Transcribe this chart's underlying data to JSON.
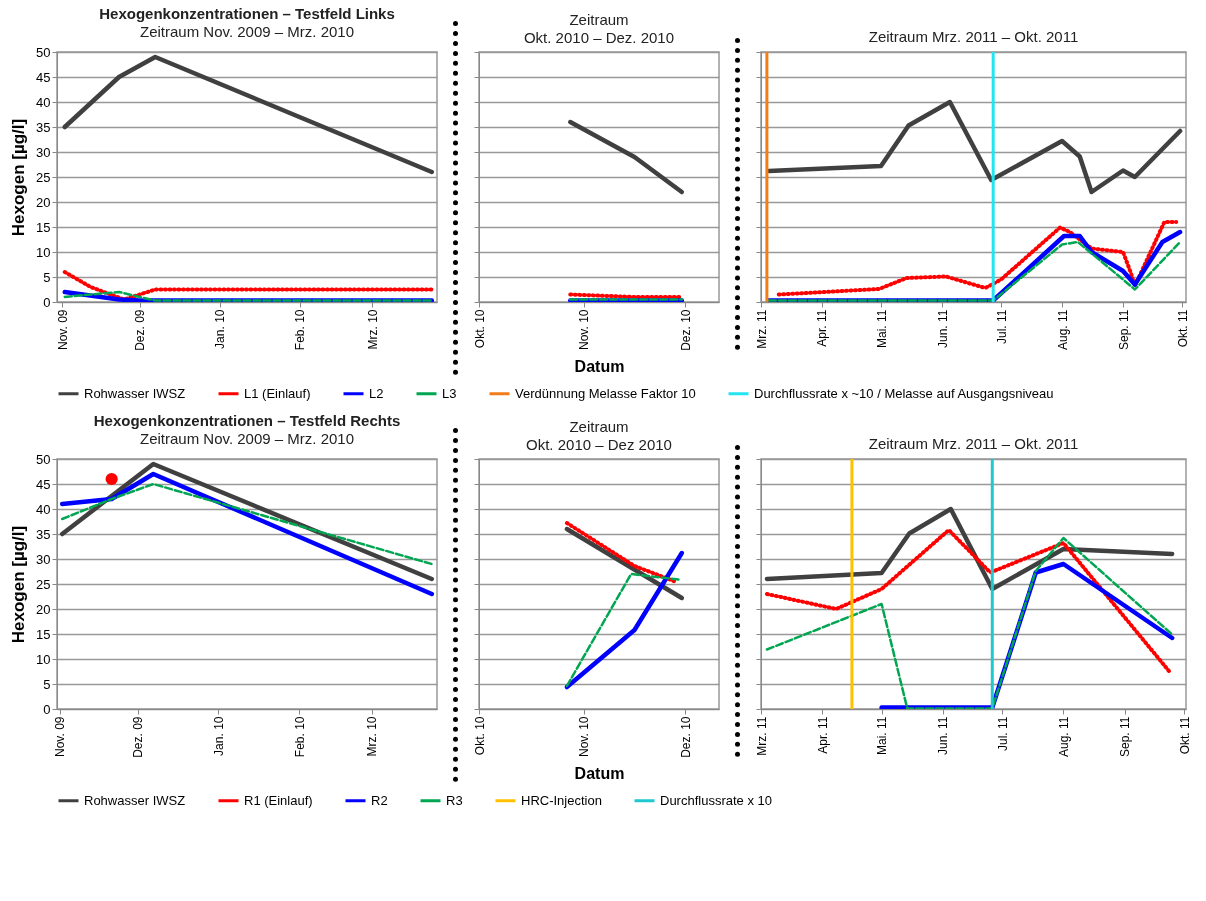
{
  "chart_data": [
    {
      "type": "line",
      "title": "Hexogenkonzentrationen – Testfeld Links",
      "subtitle": "Zeitraum Nov. 2009 – Mrz. 2010",
      "ylabel": "Hexogen [µg/l]",
      "xlim": [
        "2009-10-30",
        "2010-03-26"
      ],
      "xticks": [
        {
          "value": "2009-11-01",
          "label": "Nov. 09"
        },
        {
          "value": "2009-12-01",
          "label": "Dez. 09"
        },
        {
          "value": "2010-01-01",
          "label": "Jan. 10"
        },
        {
          "value": "2010-02-01",
          "label": "Feb. 10"
        },
        {
          "value": "2010-03-01",
          "label": "Mrz. 10"
        }
      ],
      "ylim": [
        0,
        50
      ],
      "yticks": [
        0,
        5,
        10,
        15,
        20,
        25,
        30,
        35,
        40,
        45,
        50
      ],
      "grid": "y",
      "series": [
        {
          "color": "#404040",
          "line_style": "solid",
          "x": [
            "2009-11-02",
            "2009-11-23",
            "2009-12-07",
            "2010-03-24"
          ],
          "values": [
            35,
            45,
            49,
            26
          ]
        },
        {
          "color": "#ff0000",
          "line_style": "dotted",
          "x": [
            "2009-11-02",
            "2009-11-12",
            "2009-11-25",
            "2009-12-01",
            "2009-12-07",
            "2010-03-24"
          ],
          "values": [
            6,
            3,
            0.5,
            1.5,
            2.5,
            2.5
          ]
        },
        {
          "color": "#0000ff",
          "line_style": "solid",
          "x": [
            "2009-11-02",
            "2009-11-23",
            "2009-12-01",
            "2010-03-24"
          ],
          "values": [
            2,
            0.5,
            0.3,
            0.3
          ]
        },
        {
          "color": "#00a651",
          "line_style": "dashed",
          "x": [
            "2009-11-02",
            "2009-11-12",
            "2009-11-23",
            "2009-12-01",
            "2009-12-07",
            "2010-03-24"
          ],
          "values": [
            1,
            1.5,
            2,
            1,
            0.3,
            0.3
          ]
        }
      ]
    },
    {
      "type": "line",
      "title": "Zeitraum",
      "subtitle": "Okt. 2010 – Dez. 2010",
      "xlabel": "Datum",
      "xlim": [
        "2010-10-01",
        "2010-12-11"
      ],
      "xticks": [
        {
          "value": "2010-10-01",
          "label": "Okt. 10"
        },
        {
          "value": "2010-11-01",
          "label": "Nov. 10"
        },
        {
          "value": "2010-12-01",
          "label": "Dez. 10"
        }
      ],
      "ylim": [
        0,
        50
      ],
      "yticks": [
        0,
        5,
        10,
        15,
        20,
        25,
        30,
        35,
        40,
        45,
        50
      ],
      "grid": "y",
      "tick_labels": "x",
      "series": [
        {
          "color": "#404040",
          "line_style": "solid",
          "x": [
            "2010-10-28",
            "2010-11-16",
            "2010-11-30"
          ],
          "values": [
            36,
            29,
            22
          ]
        },
        {
          "color": "#ff0000",
          "line_style": "dotted",
          "x": [
            "2010-10-28",
            "2010-11-16",
            "2010-11-30"
          ],
          "values": [
            1.5,
            1,
            1
          ]
        },
        {
          "color": "#0000ff",
          "line_style": "solid",
          "x": [
            "2010-10-28",
            "2010-11-30"
          ],
          "values": [
            0.3,
            0.3
          ]
        },
        {
          "color": "#00a651",
          "line_style": "dashed",
          "x": [
            "2010-10-28",
            "2010-11-30"
          ],
          "values": [
            0.5,
            0.5
          ]
        }
      ]
    },
    {
      "type": "line",
      "title": "Zeitraum Mrz. 2011 – Okt. 2011",
      "xlim": [
        "2011-03-01",
        "2011-10-03"
      ],
      "xticks": [
        {
          "value": "2011-03-01",
          "label": "Mrz. 11"
        },
        {
          "value": "2011-04-01",
          "label": "Apr. 11"
        },
        {
          "value": "2011-05-01",
          "label": "Mai. 11"
        },
        {
          "value": "2011-06-01",
          "label": "Jun. 11"
        },
        {
          "value": "2011-07-01",
          "label": "Jul. 11"
        },
        {
          "value": "2011-08-01",
          "label": "Aug. 11"
        },
        {
          "value": "2011-09-01",
          "label": "Sep. 11"
        },
        {
          "value": "2011-10-01",
          "label": "Okt. 11"
        }
      ],
      "ylim": [
        0,
        50
      ],
      "yticks": [
        0,
        5,
        10,
        15,
        20,
        25,
        30,
        35,
        40,
        45,
        50
      ],
      "grid": "y",
      "tick_labels": "x",
      "legend": "bottom",
      "ref_lines": [
        {
          "axis": "x",
          "value": "2011-03-04",
          "label": "Verdünnung Melasse Faktor 10",
          "color": "#f07d1a"
        },
        {
          "axis": "x",
          "value": "2011-06-27",
          "label": "Durchflussrate x ~10 / Melasse auf Ausgangsniveau",
          "color": "#22e5f0"
        }
      ],
      "series": [
        {
          "name": "Rohwasser IWSZ",
          "color": "#404040",
          "line_style": "solid",
          "x": [
            "2011-03-05",
            "2011-05-01",
            "2011-05-15",
            "2011-06-05",
            "2011-06-26",
            "2011-08-01",
            "2011-08-10",
            "2011-08-16",
            "2011-09-01",
            "2011-09-07",
            "2011-09-30"
          ],
          "values": [
            26.2,
            27.2,
            35.3,
            40,
            24.4,
            32.2,
            29.1,
            22,
            26.3,
            25,
            34.2
          ]
        },
        {
          "name": "L1 (Einlauf)",
          "color": "#ff0000",
          "line_style": "dotted",
          "x": [
            "2011-03-10",
            "2011-04-30",
            "2011-05-14",
            "2011-06-03",
            "2011-06-23",
            "2011-07-01",
            "2011-07-31",
            "2011-08-05",
            "2011-08-16",
            "2011-09-01",
            "2011-09-05",
            "2011-09-07",
            "2011-09-22",
            "2011-09-28"
          ],
          "values": [
            1.5,
            2.6,
            4.8,
            5.1,
            2.8,
            4.5,
            14.9,
            14,
            10.7,
            10,
            5.8,
            3.2,
            16,
            16
          ]
        },
        {
          "name": "L2",
          "color": "#0000ff",
          "line_style": "solid",
          "x": [
            "2011-03-05",
            "2011-06-27",
            "2011-08-02",
            "2011-08-10",
            "2011-08-16",
            "2011-09-01",
            "2011-09-07",
            "2011-09-21",
            "2011-09-30"
          ],
          "values": [
            0.3,
            0.3,
            13.2,
            13.2,
            10,
            6.2,
            3.5,
            12,
            14
          ]
        },
        {
          "name": "L3",
          "color": "#00a651",
          "line_style": "dashed",
          "x": [
            "2011-03-05",
            "2011-06-27",
            "2011-08-01",
            "2011-08-09",
            "2011-09-01",
            "2011-09-07",
            "2011-09-30"
          ],
          "values": [
            0.3,
            0.3,
            11.5,
            12,
            4.5,
            2.5,
            12
          ]
        }
      ]
    },
    {
      "type": "line",
      "title": "Hexogenkonzentrationen – Testfeld Rechts",
      "subtitle": "Zeitraum Nov. 2009 – Mrz. 2010",
      "ylabel": "Hexogen [µg/l]",
      "xlim": [
        "2009-10-31",
        "2010-03-26"
      ],
      "xticks": [
        {
          "value": "2009-11-01",
          "label": "Nov. 09"
        },
        {
          "value": "2009-12-01",
          "label": "Dez. 09"
        },
        {
          "value": "2010-01-01",
          "label": "Jan. 10"
        },
        {
          "value": "2010-02-01",
          "label": "Feb. 10"
        },
        {
          "value": "2010-03-01",
          "label": "Mrz. 10"
        }
      ],
      "ylim": [
        0,
        50
      ],
      "yticks": [
        0,
        5,
        10,
        15,
        20,
        25,
        30,
        35,
        40,
        45,
        50
      ],
      "grid": "y",
      "series": [
        {
          "color": "#404040",
          "line_style": "solid",
          "x": [
            "2009-11-02",
            "2009-12-07",
            "2010-03-24"
          ],
          "values": [
            35,
            49,
            26
          ]
        },
        {
          "type": "scatter",
          "marker": "circle",
          "color": "#ff0000",
          "x": [
            "2009-11-21"
          ],
          "values": [
            46
          ]
        },
        {
          "color": "#0000ff",
          "line_style": "solid",
          "x": [
            "2009-11-02",
            "2009-11-21",
            "2009-12-07",
            "2010-03-24"
          ],
          "values": [
            41,
            42,
            47,
            23
          ]
        },
        {
          "color": "#00a651",
          "line_style": "dashed",
          "x": [
            "2009-11-02",
            "2009-11-21",
            "2009-12-07",
            "2010-03-24"
          ],
          "values": [
            38,
            42,
            45,
            29
          ]
        }
      ]
    },
    {
      "type": "line",
      "title": "Zeitraum",
      "subtitle": "Okt. 2010 – Dez 2010",
      "xlabel": "Datum",
      "xlim": [
        "2010-10-01",
        "2010-12-11"
      ],
      "xticks": [
        {
          "value": "2010-10-01",
          "label": "Okt. 10"
        },
        {
          "value": "2010-11-01",
          "label": "Nov. 10"
        },
        {
          "value": "2010-12-01",
          "label": "Dez. 10"
        }
      ],
      "ylim": [
        0,
        50
      ],
      "yticks": [
        0,
        5,
        10,
        15,
        20,
        25,
        30,
        35,
        40,
        45,
        50
      ],
      "grid": "y",
      "tick_labels": "x",
      "series": [
        {
          "color": "#404040",
          "line_style": "solid",
          "x": [
            "2010-10-27",
            "2010-11-30"
          ],
          "values": [
            36,
            22.2
          ]
        },
        {
          "color": "#ff0000",
          "line_style": "dotted",
          "x": [
            "2010-10-27",
            "2010-11-16",
            "2010-11-28"
          ],
          "values": [
            37.2,
            28.6,
            25.5
          ]
        },
        {
          "color": "#0000ff",
          "line_style": "solid",
          "x": [
            "2010-10-27",
            "2010-11-16",
            "2010-11-30"
          ],
          "values": [
            4.4,
            15.8,
            31.2
          ]
        },
        {
          "color": "#00a651",
          "line_style": "dashed",
          "x": [
            "2010-10-27",
            "2010-11-15",
            "2010-11-29"
          ],
          "values": [
            4.6,
            27,
            25.9
          ]
        }
      ]
    },
    {
      "type": "line",
      "title": "Zeitraum Mrz. 2011 – Okt. 2011",
      "xlim": [
        "2011-03-01",
        "2011-10-02"
      ],
      "xticks": [
        {
          "value": "2011-03-01",
          "label": "Mrz. 11"
        },
        {
          "value": "2011-04-01",
          "label": "Apr. 11"
        },
        {
          "value": "2011-05-01",
          "label": "Mai. 11"
        },
        {
          "value": "2011-06-01",
          "label": "Jun. 11"
        },
        {
          "value": "2011-07-01",
          "label": "Jul. 11"
        },
        {
          "value": "2011-08-01",
          "label": "Aug. 11"
        },
        {
          "value": "2011-09-01",
          "label": "Sep. 11"
        },
        {
          "value": "2011-10-01",
          "label": "Okt. 11"
        }
      ],
      "ylim": [
        0,
        50
      ],
      "yticks": [
        0,
        5,
        10,
        15,
        20,
        25,
        30,
        35,
        40,
        45,
        50
      ],
      "grid": "y",
      "tick_labels": "x",
      "legend": "bottom",
      "ref_lines": [
        {
          "axis": "x",
          "value": "2011-04-16",
          "label": "HRC-Injection",
          "color": "#ffc000"
        },
        {
          "axis": "x",
          "value": "2011-06-26",
          "label": "Durchflussrate x 10",
          "color": "#1fc9d0"
        }
      ],
      "series": [
        {
          "name": "Rohwasser IWSZ",
          "color": "#404040",
          "line_style": "solid",
          "x": [
            "2011-03-04",
            "2011-05-01",
            "2011-05-15",
            "2011-06-05",
            "2011-06-26",
            "2011-08-01",
            "2011-09-25"
          ],
          "values": [
            26,
            27.2,
            35.1,
            40,
            24,
            32,
            31
          ]
        },
        {
          "name": "R1 (Einlauf)",
          "color": "#ff0000",
          "line_style": "dotted",
          "x": [
            "2011-03-04",
            "2011-04-08",
            "2011-04-16",
            "2011-05-01",
            "2011-06-04",
            "2011-06-25",
            "2011-08-01",
            "2011-09-24"
          ],
          "values": [
            23,
            20,
            21.4,
            24,
            35.8,
            27.3,
            33.2,
            7.3
          ]
        },
        {
          "name": "R2",
          "color": "#0000ff",
          "line_style": "solid",
          "x": [
            "2011-05-01",
            "2011-06-26",
            "2011-07-18",
            "2011-08-01",
            "2011-09-25"
          ],
          "values": [
            0.3,
            0.3,
            27.3,
            29,
            14.2
          ]
        },
        {
          "name": "R3",
          "color": "#00a651",
          "line_style": "dashed",
          "x": [
            "2011-03-04",
            "2011-05-01",
            "2011-05-14",
            "2011-06-26",
            "2011-07-18",
            "2011-08-01",
            "2011-09-25"
          ],
          "values": [
            11.9,
            21,
            0.1,
            0.1,
            27.6,
            34.2,
            14.9
          ]
        }
      ]
    }
  ]
}
